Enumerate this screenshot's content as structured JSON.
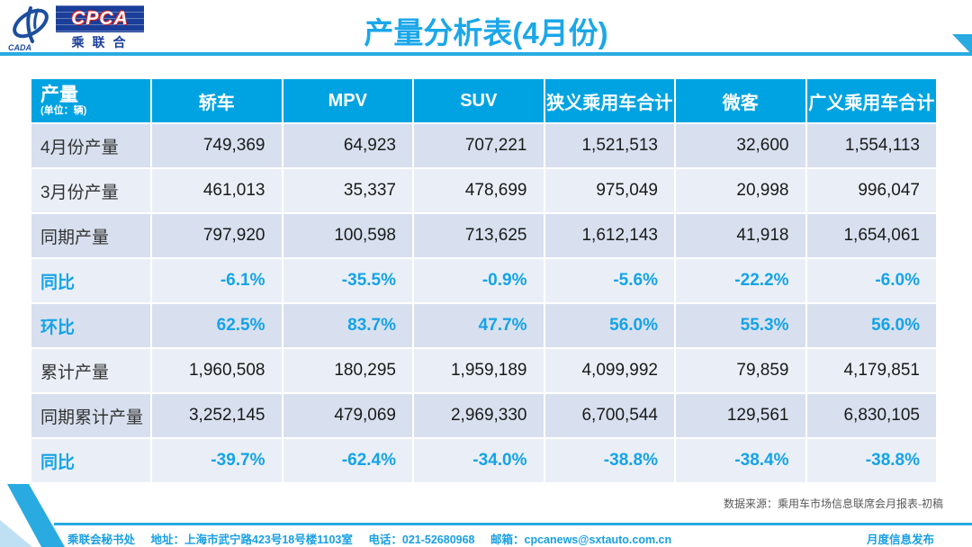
{
  "logo": {
    "emblem_text": "CADA",
    "box_text": "CPCA",
    "box_subtext": "乘联合"
  },
  "title": "产量分析表(4月份)",
  "table": {
    "corner": {
      "label": "产量",
      "unit": "(单位：辆)"
    },
    "columns": [
      "轿车",
      "MPV",
      "SUV",
      "狭义乘用车合计",
      "微客",
      "广义乘用车合计"
    ],
    "rows": [
      {
        "label": "4月份产量",
        "highlight": false,
        "values": [
          "749,369",
          "64,923",
          "707,221",
          "1,521,513",
          "32,600",
          "1,554,113"
        ]
      },
      {
        "label": "3月份产量",
        "highlight": false,
        "values": [
          "461,013",
          "35,337",
          "478,699",
          "975,049",
          "20,998",
          "996,047"
        ]
      },
      {
        "label": "同期产量",
        "highlight": false,
        "values": [
          "797,920",
          "100,598",
          "713,625",
          "1,612,143",
          "41,918",
          "1,654,061"
        ]
      },
      {
        "label": "同比",
        "highlight": true,
        "values": [
          "-6.1%",
          "-35.5%",
          "-0.9%",
          "-5.6%",
          "-22.2%",
          "-6.0%"
        ]
      },
      {
        "label": "环比",
        "highlight": true,
        "values": [
          "62.5%",
          "83.7%",
          "47.7%",
          "56.0%",
          "55.3%",
          "56.0%"
        ]
      },
      {
        "label": "累计产量",
        "highlight": false,
        "values": [
          "1,960,508",
          "180,295",
          "1,959,189",
          "4,099,992",
          "79,859",
          "4,179,851"
        ]
      },
      {
        "label": "同期累计产量",
        "highlight": false,
        "values": [
          "3,252,145",
          "479,069",
          "2,969,330",
          "6,700,544",
          "129,561",
          "6,830,105"
        ]
      },
      {
        "label": "同比",
        "highlight": true,
        "values": [
          "-39.7%",
          "-62.4%",
          "-34.0%",
          "-38.8%",
          "-38.4%",
          "-38.8%"
        ]
      }
    ]
  },
  "source_note": "数据来源：乘用车市场信息联席会月报表-初稿",
  "footer": {
    "org": "乘联会秘书处",
    "address": "地址：上海市武宁路423号18号楼1103室",
    "phone": "电话：021-52680968",
    "email": "邮箱：cpcanews@sxtauto.com.cn",
    "right": "月度信息发布"
  },
  "colors": {
    "accent": "#00A3E2",
    "title_blue": "#1BA7E9",
    "row_dark": "#D8E0EF",
    "row_light": "#EAEFF7",
    "highlight_text": "#14A3E8",
    "logo_navy": "#1A3E99"
  }
}
